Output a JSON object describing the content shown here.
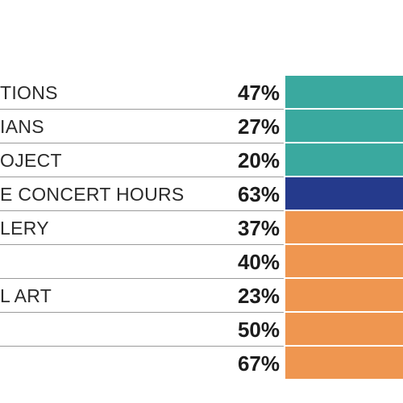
{
  "chart_data": {
    "type": "bar",
    "orientation": "horizontal",
    "categories": [
      "TIONS",
      "IANS",
      "OJECT",
      "E CONCERT HOURS",
      "LERY",
      "",
      "L ART",
      "",
      ""
    ],
    "value_labels": [
      "47%",
      "27%",
      "20%",
      "63%",
      "37%",
      "40%",
      "23%",
      "50%",
      "67%"
    ],
    "values": [
      47,
      27,
      20,
      63,
      37,
      40,
      23,
      50,
      67
    ],
    "bar_colors": [
      "#3aa99f",
      "#3aa99f",
      "#3aa99f",
      "#253a8c",
      "#ef9650",
      "#ef9650",
      "#ef9650",
      "#ef9650",
      "#ef9650"
    ],
    "title": "",
    "xlabel": "",
    "ylabel": "",
    "grid": false,
    "legend": "none"
  },
  "colors": {
    "teal": "#3aa99f",
    "navy": "#253a8c",
    "orange": "#ef9650",
    "divider": "#9a9a9a"
  }
}
